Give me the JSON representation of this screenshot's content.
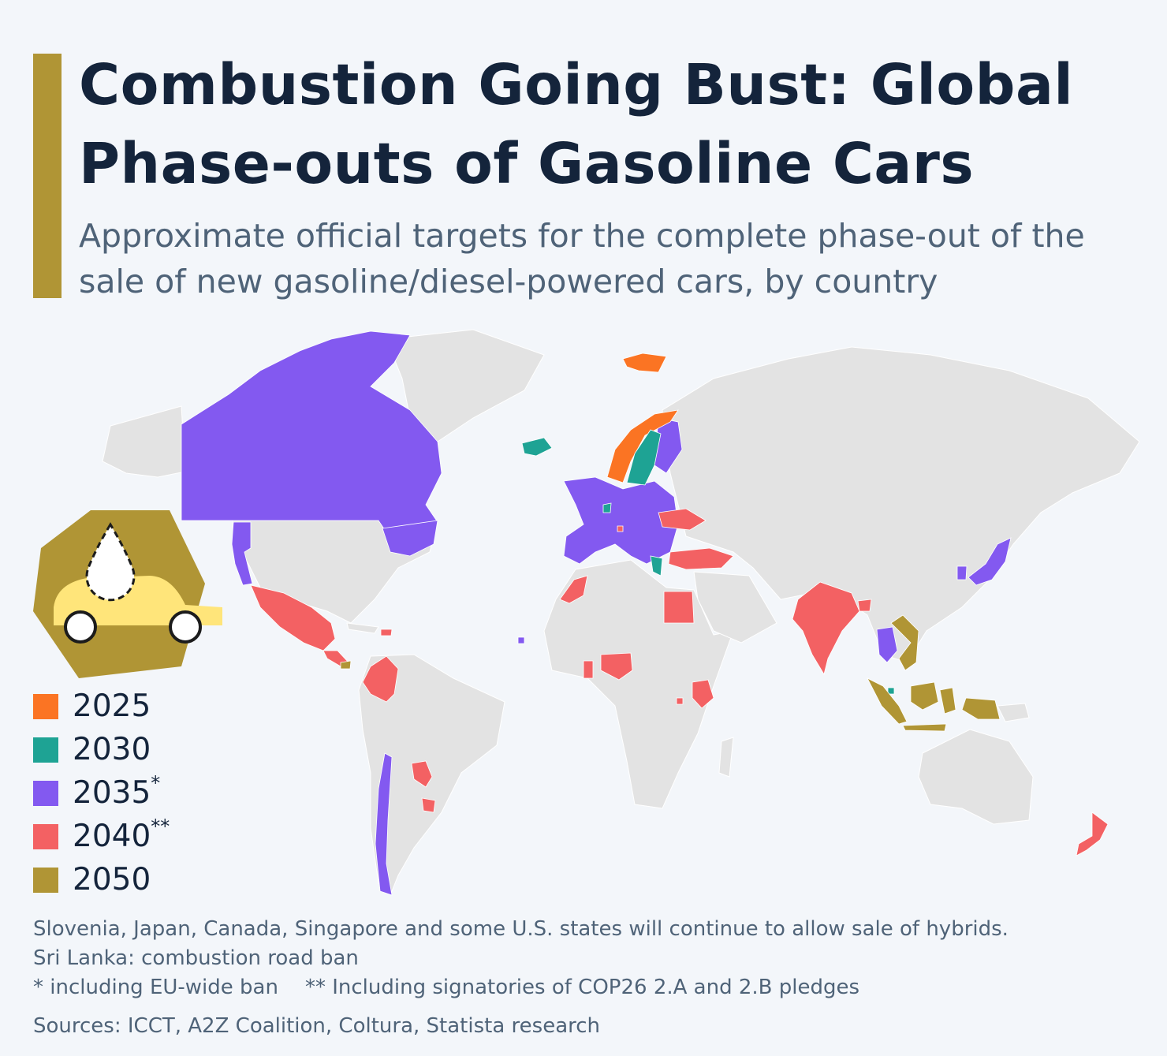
{
  "title": "Combustion Going Bust: Global Phase-outs of Gasoline Cars",
  "subtitle": "Approximate official targets for the complete phase-out of the sale of new gasoline/diesel-powered cars, by country",
  "colors": {
    "accent": "#b09535",
    "land": "#e3e3e3",
    "background": "#f3f6fa",
    "2025": "#fb7423",
    "2030": "#1ea394",
    "2035": "#8359f0",
    "2040": "#f36163",
    "2050": "#b09535"
  },
  "legend": [
    {
      "year": "2025",
      "marker": "",
      "color": "#fb7423"
    },
    {
      "year": "2030",
      "marker": "",
      "color": "#1ea394"
    },
    {
      "year": "2035",
      "marker": "*",
      "color": "#8359f0"
    },
    {
      "year": "2040",
      "marker": "**",
      "color": "#f36163"
    },
    {
      "year": "2050",
      "marker": "",
      "color": "#b09535"
    }
  ],
  "icons": {
    "badge": "car-with-fuel-drop-icon"
  },
  "notes": {
    "hybrids": "Slovenia, Japan, Canada, Singapore and some U.S. states will continue to allow sale of hybrids.",
    "sri_lanka": "Sri Lanka: combustion road ban",
    "footnote_single": "* including EU-wide ban",
    "footnote_double": "** Including signatories of COP26 2.A and 2.B pledges",
    "sources": "Sources: ICCT, A2Z Coalition, Coltura, Statista research"
  }
}
